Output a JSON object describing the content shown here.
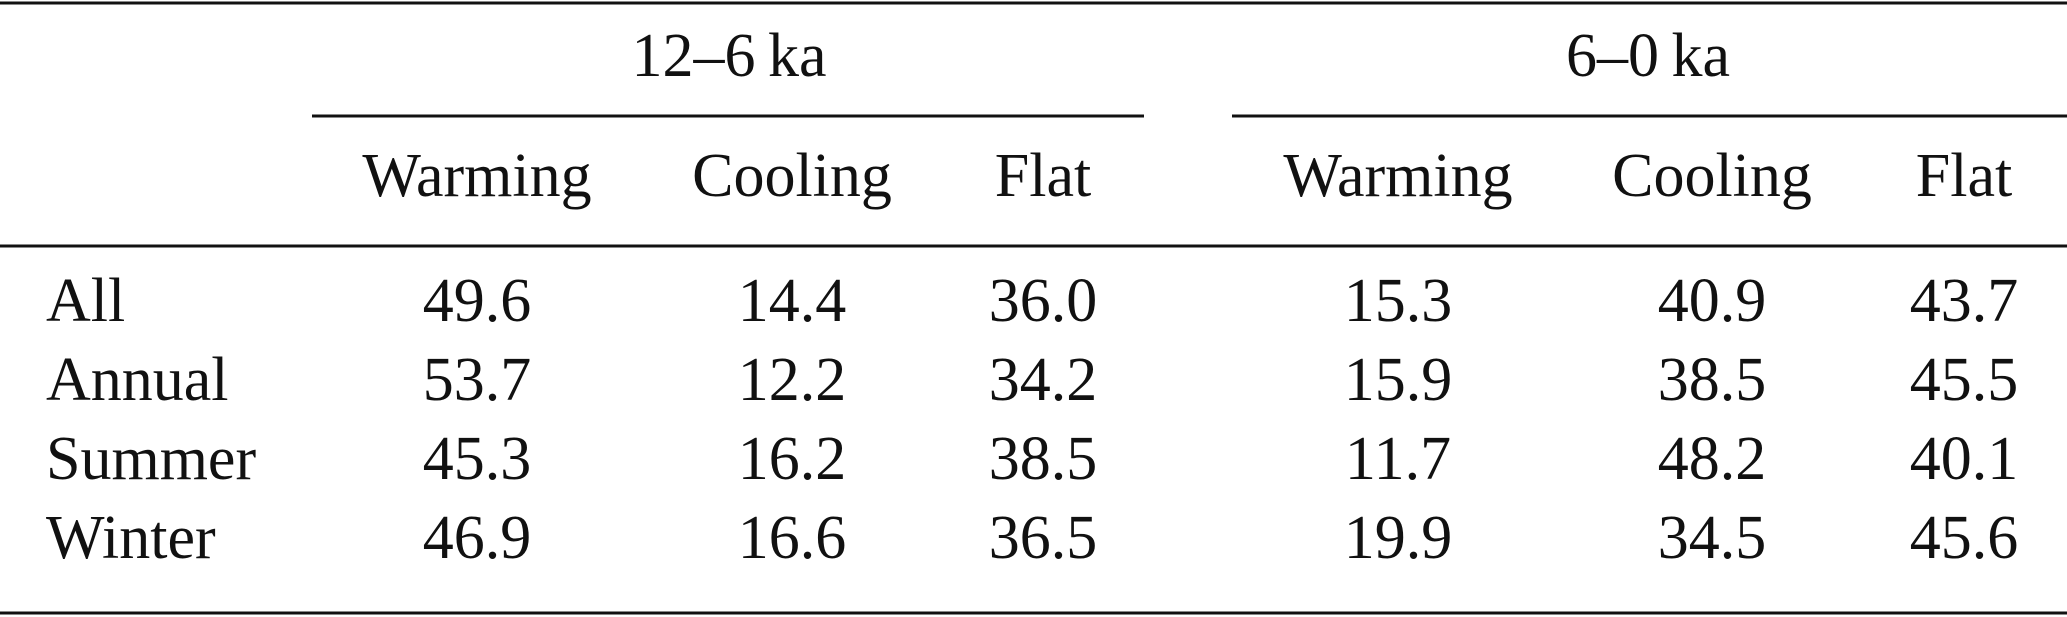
{
  "table": {
    "groups": [
      {
        "label": "12–6 ka",
        "columns": [
          "Warming",
          "Cooling",
          "Flat"
        ]
      },
      {
        "label": "6–0 ka",
        "columns": [
          "Warming",
          "Cooling",
          "Flat"
        ]
      }
    ],
    "rows": [
      {
        "label": "All",
        "values": [
          "49.6",
          "14.4",
          "36.0",
          "15.3",
          "40.9",
          "43.7"
        ]
      },
      {
        "label": "Annual",
        "values": [
          "53.7",
          "12.2",
          "34.2",
          "15.9",
          "38.5",
          "45.5"
        ]
      },
      {
        "label": "Summer",
        "values": [
          "45.3",
          "16.2",
          "38.5",
          "11.7",
          "48.2",
          "40.1"
        ]
      },
      {
        "label": "Winter",
        "values": [
          "46.9",
          "16.6",
          "36.5",
          "19.9",
          "34.5",
          "45.6"
        ]
      }
    ]
  }
}
